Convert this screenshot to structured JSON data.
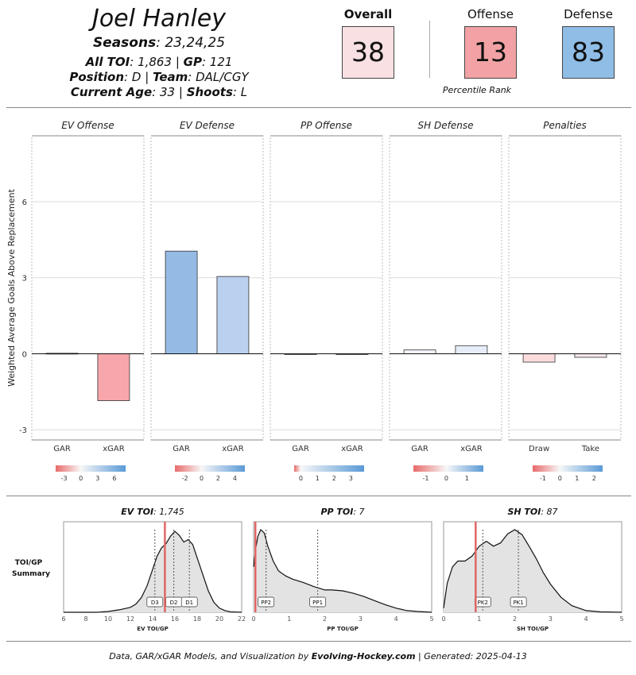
{
  "header": {
    "player_name": "Joel Hanley",
    "seasons_label": "Seasons",
    "seasons_value": "23,24,25",
    "toi_label": "All TOI",
    "toi_value": "1,863",
    "gp_label": "GP",
    "gp_value": "121",
    "position_label": "Position",
    "position_value": "D",
    "team_label": "Team",
    "team_value": "DAL/CGY",
    "age_label": "Current Age",
    "age_value": "33",
    "shoots_label": "Shoots",
    "shoots_value": "L",
    "sep": "|"
  },
  "percentiles": {
    "overall_label": "Overall",
    "overall_value": "38",
    "overall_color": "#f9e0e2",
    "offense_label": "Offense",
    "offense_value": "13",
    "offense_color": "#f2a2a4",
    "defense_label": "Defense",
    "defense_value": "83",
    "defense_color": "#8fbde6",
    "caption": "Percentile Rank"
  },
  "chart_data": [
    {
      "type": "bar",
      "ylabel": "Weighted Average Goals Above Replacement",
      "ylim": [
        -3.4,
        8.6
      ],
      "yticks": [
        "-3",
        "0",
        "3",
        "6"
      ],
      "grid": true,
      "panels": [
        {
          "title": "EV Offense",
          "categories": [
            "GAR",
            "xGAR"
          ],
          "values": [
            0.02,
            -1.85
          ],
          "colors": [
            "#f4f6fb",
            "#f7a7ab"
          ],
          "legend": {
            "ticks": [
              "-3",
              "0",
              "3",
              "6"
            ],
            "min": -4.5,
            "max": 8
          }
        },
        {
          "title": "EV Defense",
          "categories": [
            "GAR",
            "xGAR"
          ],
          "values": [
            4.05,
            3.05
          ],
          "colors": [
            "#95bbe5",
            "#b9d0ee"
          ],
          "legend": {
            "ticks": [
              "-2",
              "0",
              "2",
              "4"
            ],
            "min": -3.2,
            "max": 5.2
          }
        },
        {
          "title": "PP Offense",
          "categories": [
            "GAR",
            "xGAR"
          ],
          "values": [
            -0.03,
            -0.02
          ],
          "colors": [
            "#f8f1f2",
            "#f6f4f6"
          ],
          "legend": {
            "ticks": [
              "0",
              "1",
              "2",
              "3"
            ],
            "min": -0.4,
            "max": 3.8
          }
        },
        {
          "title": "SH Defense",
          "categories": [
            "GAR",
            "xGAR"
          ],
          "values": [
            0.15,
            0.32
          ],
          "colors": [
            "#f3f6fc",
            "#e6edf8"
          ],
          "legend": {
            "ticks": [
              "-1",
              "0",
              "1"
            ],
            "min": -1.6,
            "max": 1.8
          }
        },
        {
          "title": "Penalties",
          "categories": [
            "Draw",
            "Take"
          ],
          "values": [
            -0.33,
            -0.14
          ],
          "colors": [
            "#fbdcdc",
            "#f8e8ea"
          ],
          "legend": {
            "ticks": [
              "-1",
              "0",
              "1",
              "2"
            ],
            "min": -1.6,
            "max": 2.5
          }
        }
      ]
    },
    {
      "type": "area",
      "row_label_1": "TOI/GP",
      "row_label_2": "Summary",
      "panels": [
        {
          "title_bold": "EV TOI",
          "title_value": "1,745",
          "xlabel": "EV TOI/GP",
          "xlim": [
            6,
            22
          ],
          "xticks": [
            "6",
            "8",
            "10",
            "12",
            "14",
            "16",
            "18",
            "20",
            "22"
          ],
          "player_value": 15.1,
          "markers": [
            {
              "label": "D3",
              "x": 14.2
            },
            {
              "label": "D2",
              "x": 15.9
            },
            {
              "label": "D1",
              "x": 17.3
            }
          ],
          "density_x": [
            6,
            9,
            10,
            11,
            12,
            12.5,
            13,
            13.5,
            14,
            14.4,
            14.8,
            15.2,
            15.6,
            16.0,
            16.4,
            16.8,
            17.2,
            17.6,
            18,
            18.5,
            19,
            19.5,
            20,
            20.5,
            21,
            22
          ],
          "density_y": [
            0,
            0,
            0.01,
            0.03,
            0.06,
            0.1,
            0.18,
            0.32,
            0.52,
            0.68,
            0.78,
            0.83,
            0.92,
            0.98,
            0.93,
            0.85,
            0.88,
            0.82,
            0.66,
            0.46,
            0.26,
            0.12,
            0.05,
            0.02,
            0.005,
            0
          ]
        },
        {
          "title_bold": "PP TOI",
          "title_value": "7",
          "xlabel": "PP TOI/GP",
          "xlim": [
            0,
            5
          ],
          "xticks": [
            "0",
            "1",
            "2",
            "3",
            "4",
            "5"
          ],
          "player_value": 0.05,
          "markers": [
            {
              "label": "PP2",
              "x": 0.35
            },
            {
              "label": "PP1",
              "x": 1.8
            }
          ],
          "density_x": [
            0,
            0.05,
            0.12,
            0.2,
            0.3,
            0.4,
            0.55,
            0.7,
            0.9,
            1.1,
            1.4,
            1.7,
            2.0,
            2.2,
            2.5,
            2.8,
            3.1,
            3.4,
            3.7,
            4.0,
            4.3,
            4.6,
            5.0
          ],
          "density_y": [
            0.55,
            0.75,
            0.92,
            1.0,
            0.96,
            0.8,
            0.62,
            0.5,
            0.44,
            0.4,
            0.36,
            0.31,
            0.27,
            0.27,
            0.26,
            0.23,
            0.19,
            0.14,
            0.09,
            0.05,
            0.02,
            0.01,
            0
          ]
        },
        {
          "title_bold": "SH TOI",
          "title_value": "87",
          "xlabel": "SH TOI/GP",
          "xlim": [
            0,
            5
          ],
          "xticks": [
            "0",
            "1",
            "2",
            "3",
            "4",
            "5"
          ],
          "player_value": 0.9,
          "markers": [
            {
              "label": "PK2",
              "x": 1.1
            },
            {
              "label": "PK1",
              "x": 2.1
            }
          ],
          "density_x": [
            0,
            0.1,
            0.25,
            0.4,
            0.6,
            0.8,
            1.0,
            1.2,
            1.4,
            1.6,
            1.8,
            2.0,
            2.2,
            2.4,
            2.6,
            2.8,
            3.0,
            3.3,
            3.6,
            4.0,
            4.4,
            5.0
          ],
          "density_y": [
            0.05,
            0.35,
            0.55,
            0.62,
            0.62,
            0.68,
            0.8,
            0.86,
            0.8,
            0.84,
            0.95,
            1.0,
            0.94,
            0.8,
            0.65,
            0.48,
            0.34,
            0.18,
            0.08,
            0.02,
            0.005,
            0
          ]
        }
      ]
    }
  ],
  "footer": {
    "pre": "Data, GAR/xGAR Models, and Visualization by ",
    "site": "Evolving-Hockey.com",
    "post": " | Generated: 2025-04-13"
  }
}
